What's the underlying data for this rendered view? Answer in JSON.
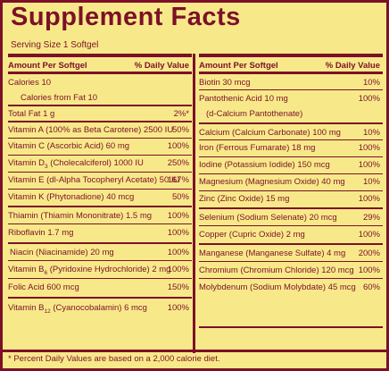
{
  "title": "Supplement Facts",
  "serving": "Serving Size 1 Softgel",
  "left": {
    "header_label": "Amount Per Softgel",
    "header_dv": "% Daily Value",
    "calories": "Calories 10",
    "calories_fat": "Calories from Fat 10",
    "total_fat": "Total Fat 1 g",
    "total_fat_dv": "2%*",
    "vit_a": "Vitamin A (100% as Beta Carotene) 2500 IU",
    "vit_a_dv": "50%",
    "vit_c": "Vitamin C (Ascorbic Acid) 60 mg",
    "vit_c_dv": "100%",
    "vit_d_pre": "Vitamin D",
    "vit_d_sub": "3",
    "vit_d_post": " (Cholecalciferol) 1000 IU",
    "vit_d_dv": "250%",
    "vit_e": "Vitamin E (dl-Alpha Tocopheryl Acetate) 50 IU",
    "vit_e_dv": "167%",
    "vit_k": "Vitamin K (Phytonadione) 40 mcg",
    "vit_k_dv": "50%",
    "thiamin": "Thiamin (Thiamin Mononitrate) 1.5 mg",
    "thiamin_dv": "100%",
    "riboflavin": "Riboflavin 1.7 mg",
    "riboflavin_dv": "100%",
    "niacin": "Niacin (Niacinamide) 20 mg",
    "niacin_dv": "100%",
    "vit_b6_pre": "Vitamin B",
    "vit_b6_sub": "6",
    "vit_b6_post": " (Pyridoxine Hydrochloride) 2 mg",
    "vit_b6_dv": "100%",
    "folic": "Folic Acid 600 mcg",
    "folic_dv": "150%",
    "vit_b12_pre": "Vitamin B",
    "vit_b12_sub": "12",
    "vit_b12_post": " (Cyanocobalamin) 6 mcg",
    "vit_b12_dv": "100%"
  },
  "right": {
    "header_label": "Amount Per Softgel",
    "header_dv": "% Daily Value",
    "biotin": "Biotin 30 mcg",
    "biotin_dv": "10%",
    "panto": "Pantothenic Acid 10 mg",
    "panto2": "(d-Calcium Pantothenate)",
    "panto_dv": "100%",
    "calcium": "Calcium (Calcium Carbonate) 100 mg",
    "calcium_dv": "10%",
    "iron": "Iron (Ferrous Fumarate) 18 mg",
    "iron_dv": "100%",
    "iodine": "Iodine (Potassium Iodide) 150 mcg",
    "iodine_dv": "100%",
    "magnesium": "Magnesium (Magnesium Oxide) 40 mg",
    "magnesium_dv": "10%",
    "zinc": "Zinc (Zinc Oxide) 15 mg",
    "zinc_dv": "100%",
    "selenium": "Selenium (Sodium Selenate) 20 mcg",
    "selenium_dv": "29%",
    "copper": "Copper (Cupric Oxide) 2 mg",
    "copper_dv": "100%",
    "manganese": "Manganese (Manganese Sulfate) 4 mg",
    "manganese_dv": "200%",
    "chromium": "Chromium (Chromium Chloride) 120 mcg",
    "chromium_dv": "100%",
    "molybdenum": "Molybdenum (Sodium Molybdate) 45 mcg",
    "molybdenum_dv": "60%"
  },
  "footnote": "* Percent Daily Values are based on a 2,000 calorie diet."
}
